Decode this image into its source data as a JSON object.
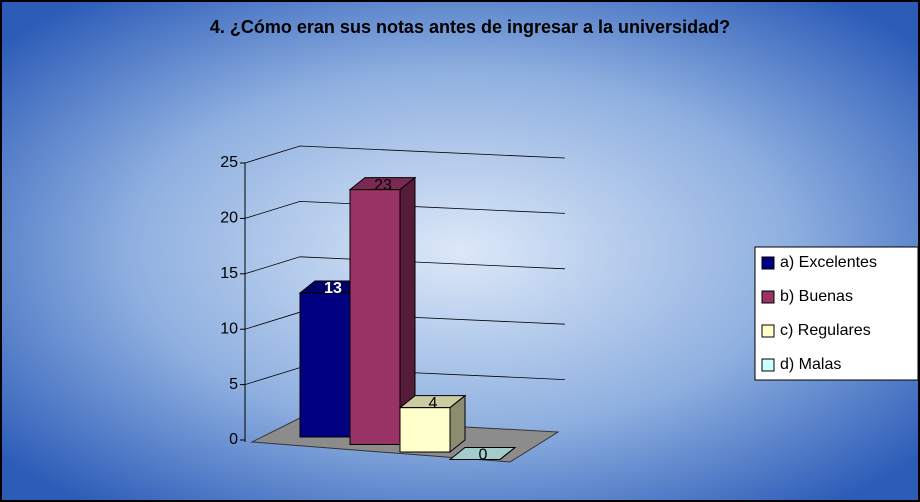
{
  "chart_data": {
    "type": "bar",
    "title": "4.  ¿Cómo eran sus notas antes de ingresar a la universidad?",
    "categories": [
      null
    ],
    "series": [
      {
        "name": "a) Excelentes",
        "color": "#000080",
        "values": [
          13
        ]
      },
      {
        "name": "b) Buenas",
        "color": "#993366",
        "values": [
          23
        ]
      },
      {
        "name": "c) Regulares",
        "color": "#FFFFCC",
        "values": [
          4
        ]
      },
      {
        "name": "d) Malas",
        "color": "#CCFFFF",
        "values": [
          0
        ]
      }
    ],
    "ylim": [
      0,
      25
    ],
    "yticks": [
      0,
      5,
      10,
      15,
      20,
      25
    ],
    "grid": true,
    "legend": "right"
  }
}
